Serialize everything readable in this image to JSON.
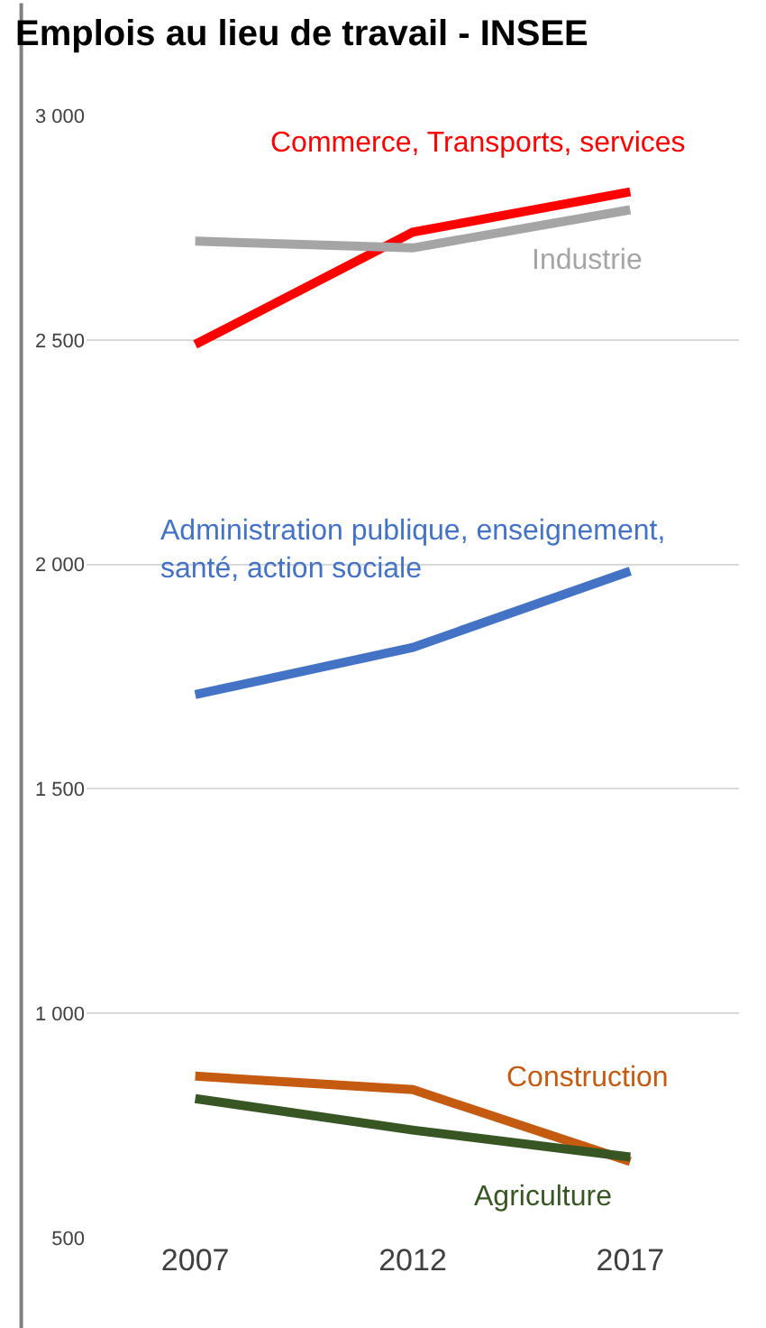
{
  "chart_data": {
    "type": "line",
    "title": "Emplois au lieu de travail - INSEE",
    "categories": [
      "2007",
      "2012",
      "2017"
    ],
    "series": [
      {
        "name": "Commerce, Transports, services",
        "color": "#ff0000",
        "values": [
          2490,
          2740,
          2830
        ]
      },
      {
        "name": "Industrie",
        "color": "#a5a5a5",
        "values": [
          2720,
          2705,
          2790
        ]
      },
      {
        "name": "Administration publique, enseignement, santé, action sociale",
        "color": "#4472c4",
        "values": [
          1710,
          1815,
          1985
        ]
      },
      {
        "name": "Construction",
        "color": "#c55a11",
        "values": [
          860,
          830,
          670
        ]
      },
      {
        "name": "Agriculture",
        "color": "#375623",
        "values": [
          810,
          740,
          680
        ]
      }
    ],
    "ylim": [
      500,
      3000
    ],
    "yticks": [
      {
        "value": 500,
        "label": "500"
      },
      {
        "value": 1000,
        "label": "1 000"
      },
      {
        "value": 1500,
        "label": "1 500"
      },
      {
        "value": 2000,
        "label": "2 000"
      },
      {
        "value": 2500,
        "label": "2 500"
      },
      {
        "value": 3000,
        "label": "3 000"
      }
    ],
    "grid": "y",
    "legend": false,
    "marker": "none",
    "line_style": "solid"
  }
}
